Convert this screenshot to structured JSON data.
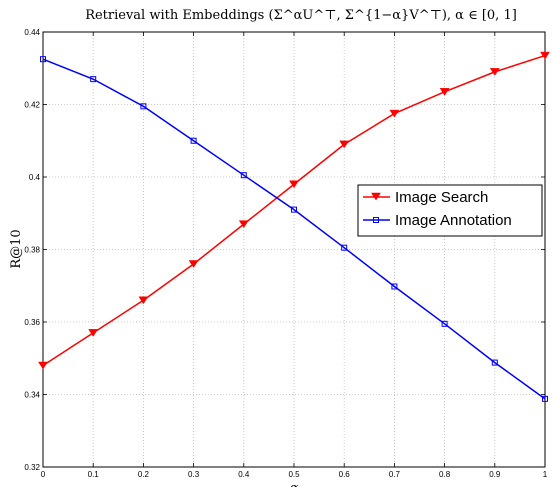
{
  "chart_data": {
    "type": "line",
    "title": "Retrieval with Embeddings (Σ^αU^⊤, Σ^{1−α}V^⊤), α ∈ [0, 1]",
    "xlabel": "α",
    "ylabel": "R@10",
    "x": [
      0,
      0.1,
      0.2,
      0.3,
      0.4,
      0.5,
      0.6,
      0.7,
      0.8,
      0.9,
      1
    ],
    "x_tick_labels": [
      "0",
      "0.1",
      "0.2",
      "0.3",
      "0.4",
      "0.5",
      "0.6",
      "0.7",
      "0.8",
      "0.9",
      "1"
    ],
    "y_tick_labels": [
      "0.32",
      "0.34",
      "0.36",
      "0.38",
      "0.4",
      "0.42",
      "0.44"
    ],
    "xlim": [
      0,
      1
    ],
    "ylim": [
      0.32,
      0.44
    ],
    "grid": true,
    "legend_position": "right",
    "series": [
      {
        "name": "Image Search",
        "color": "#ff0000",
        "marker": "triangle-down",
        "values": [
          0.348,
          0.357,
          0.366,
          0.376,
          0.387,
          0.398,
          0.409,
          0.4175,
          0.4235,
          0.429,
          0.4335
        ]
      },
      {
        "name": "Image Annotation",
        "color": "#0000ff",
        "marker": "square",
        "values": [
          0.4325,
          0.427,
          0.4195,
          0.41,
          0.4005,
          0.391,
          0.3805,
          0.3698,
          0.3595,
          0.3488,
          0.3388
        ]
      }
    ]
  }
}
